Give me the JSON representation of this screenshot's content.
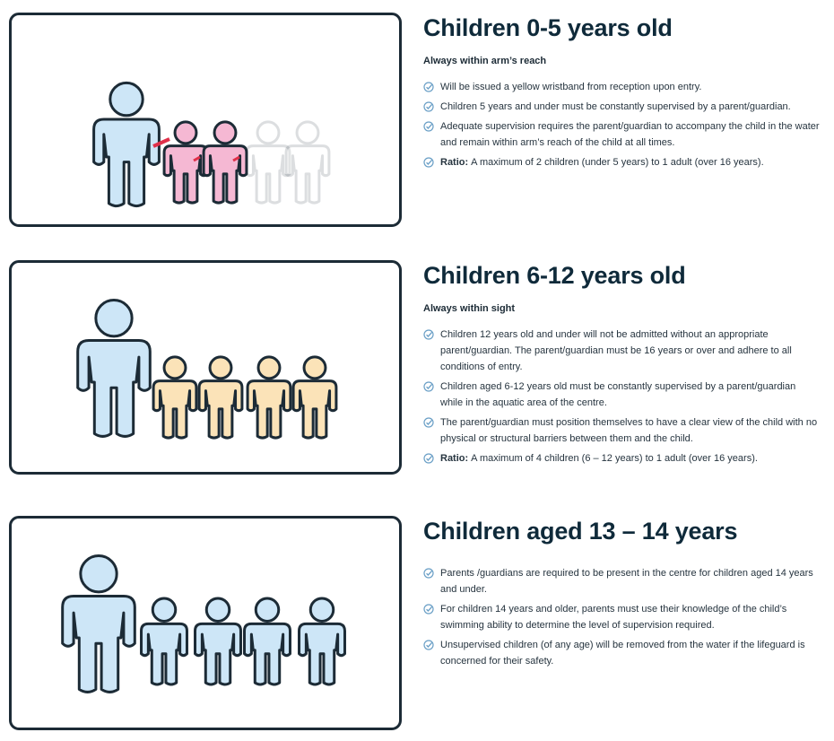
{
  "sections": [
    {
      "title": "Children 0-5 years old",
      "subtitle": "Always within arm’s reach",
      "items": [
        {
          "text": "Will be issued a yellow wristband from reception upon entry."
        },
        {
          "text": "Children 5 years and under must be constantly supervised by a parent/guardian."
        },
        {
          "text": "Adequate supervision requires the parent/guardian to accompany the child in the water and remain within arm’s reach of the child at all times."
        },
        {
          "label": "Ratio:",
          "text": "A maximum of 2 children (under 5 years) to 1 adult (over 16 years)."
        }
      ]
    },
    {
      "title": "Children 6-12 years old",
      "subtitle": "Always within sight",
      "items": [
        {
          "text": "Children 12 years old and under will not be admitted without an appropriate parent/guardian. The parent/guardian must be 16 years or over and adhere to all conditions of entry."
        },
        {
          "text": "Children aged 6-12 years old must be constantly supervised by a parent/guardian while in the aquatic area of the centre."
        },
        {
          "text": "The parent/guardian must position themselves to have a clear view of the child with no physical or structural barriers between them and the child."
        },
        {
          "label": "Ratio:",
          "text": "A maximum of 4 children (6 – 12 years) to 1 adult (over 16 years)."
        }
      ]
    },
    {
      "title": "Children aged 13 – 14 years",
      "items": [
        {
          "text": "Parents /guardians are required to be present in the centre for children aged 14 years and under."
        },
        {
          "text": "For children 14 years and older, parents must use their knowledge of the child’s swimming ability to determine the level of supervision required."
        },
        {
          "text": "Unsupervised children (of any age) will be removed from the water if the lifeguard is concerned for their safety."
        }
      ]
    }
  ]
}
